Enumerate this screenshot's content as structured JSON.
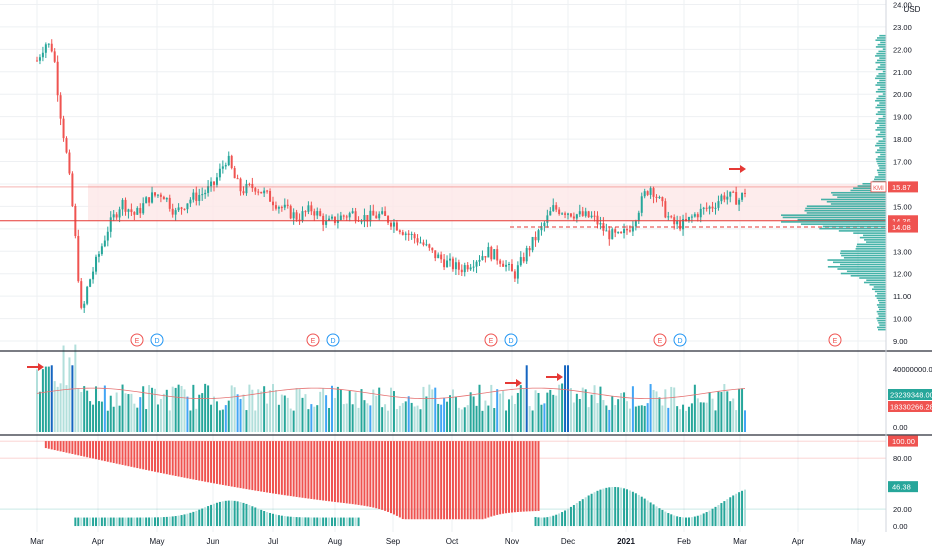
{
  "colors": {
    "up": "#26a69a",
    "down": "#ef5350",
    "up_light": "#b2dfdb",
    "vol_highlight": "#1565c0",
    "vol_mid": "#42a5f5",
    "zone": "#fde7e7",
    "price_line": "#e53935",
    "axis_text": "#131722",
    "grid": "#eef0f3",
    "event_e": "#ef5350",
    "event_d": "#2196f3",
    "arrow": "#e53935",
    "ma": "#e57373",
    "pane_border": "#2a2e39"
  },
  "currency_label": "USD",
  "price_axis": {
    "ticks": [
      "24.00",
      "23.00",
      "22.00",
      "21.00",
      "20.00",
      "19.00",
      "18.00",
      "17.00",
      "16.00",
      "15.00",
      "14.00",
      "13.00",
      "12.00",
      "11.00",
      "10.00",
      "9.00"
    ],
    "tick_values": [
      24,
      23,
      22,
      21,
      20,
      19,
      18,
      17,
      16,
      15,
      14,
      13,
      12,
      11,
      10,
      9
    ]
  },
  "price_labels": [
    {
      "text": "15.87",
      "color": "#ef5350",
      "value": 15.87,
      "tag": "KMI"
    },
    {
      "text": "14.36",
      "color": "#ef5350",
      "value": 14.36,
      "tag": ""
    },
    {
      "text": "14.08",
      "color": "#ef5350",
      "value": 14.08,
      "tag": ""
    }
  ],
  "volume_axis": {
    "ticks": [
      "40000000.00",
      "0.00"
    ],
    "tick_values": [
      40000000,
      0
    ]
  },
  "volume_labels": [
    {
      "text": "23239348.00",
      "color": "#26a69a"
    },
    {
      "text": "18330266.28",
      "color": "#ef5350"
    }
  ],
  "osc_axis": {
    "ticks": [
      "100.00",
      "80.00",
      "20.00",
      "0.00"
    ],
    "tick_values": [
      100,
      80,
      20,
      0
    ]
  },
  "osc_labels": [
    {
      "text": "100.00",
      "color": "#ef5350",
      "value": 100
    },
    {
      "text": "46.38",
      "color": "#26a69a",
      "value": 46.38
    }
  ],
  "time_axis": [
    "Mar",
    "Apr",
    "May",
    "Jun",
    "Jul",
    "Aug",
    "Sep",
    "Oct",
    "Nov",
    "Dec",
    "2021",
    "Feb",
    "Mar",
    "Apr",
    "May"
  ],
  "event_markers": [
    {
      "label": "E",
      "month": "May",
      "kind": "E"
    },
    {
      "label": "D",
      "month": "May",
      "kind": "D"
    },
    {
      "label": "E",
      "month": "Jul",
      "kind": "E"
    },
    {
      "label": "D",
      "month": "Aug",
      "kind": "D"
    },
    {
      "label": "E",
      "month": "Oct",
      "kind": "E"
    },
    {
      "label": "D",
      "month": "Nov",
      "kind": "D"
    },
    {
      "label": "E",
      "month": "Jan",
      "kind": "E"
    },
    {
      "label": "D",
      "month": "Feb",
      "kind": "D"
    },
    {
      "label": "E",
      "month": "Apr",
      "kind": "E"
    }
  ],
  "chart_data": {
    "type": "candlestick",
    "title": "",
    "y_range": [
      9,
      24.2
    ],
    "zone": {
      "low": 14.36,
      "high": 16.0
    },
    "horizontal_levels": [
      15.87,
      14.36,
      14.08
    ],
    "price_path": [
      [
        "Mar-01",
        21.5
      ],
      [
        "Mar-05",
        22.3
      ],
      [
        "Mar-09",
        22.0
      ],
      [
        "Mar-12",
        19.5
      ],
      [
        "Mar-16",
        17.0
      ],
      [
        "Mar-19",
        14.5
      ],
      [
        "Mar-23",
        10.0
      ],
      [
        "Mar-26",
        11.5
      ],
      [
        "Mar-30",
        12.5
      ],
      [
        "Apr-06",
        14.0
      ],
      [
        "Apr-13",
        15.2
      ],
      [
        "Apr-20",
        14.6
      ],
      [
        "Apr-27",
        15.4
      ],
      [
        "May-04",
        15.6
      ],
      [
        "May-11",
        14.7
      ],
      [
        "May-18",
        15.3
      ],
      [
        "May-26",
        15.6
      ],
      [
        "Jun-01",
        15.9
      ],
      [
        "Jun-08",
        17.2
      ],
      [
        "Jun-12",
        16.2
      ],
      [
        "Jun-15",
        15.7
      ],
      [
        "Jun-22",
        15.9
      ],
      [
        "Jun-29",
        15.4
      ],
      [
        "Jul-06",
        14.9
      ],
      [
        "Jul-13",
        14.5
      ],
      [
        "Jul-20",
        14.9
      ],
      [
        "Jul-27",
        14.2
      ],
      [
        "Aug-03",
        14.5
      ],
      [
        "Aug-10",
        14.7
      ],
      [
        "Aug-17",
        14.5
      ],
      [
        "Aug-24",
        14.6
      ],
      [
        "Aug-31",
        14.3
      ],
      [
        "Sep-08",
        13.8
      ],
      [
        "Sep-14",
        13.5
      ],
      [
        "Sep-21",
        12.9
      ],
      [
        "Sep-28",
        12.5
      ],
      [
        "Oct-05",
        12.2
      ],
      [
        "Oct-12",
        12.6
      ],
      [
        "Oct-19",
        13.0
      ],
      [
        "Oct-26",
        12.6
      ],
      [
        "Nov-02",
        11.9
      ],
      [
        "Nov-09",
        13.0
      ],
      [
        "Nov-16",
        13.9
      ],
      [
        "Nov-23",
        14.9
      ],
      [
        "Nov-30",
        14.8
      ],
      [
        "Dec-07",
        14.6
      ],
      [
        "Dec-14",
        14.5
      ],
      [
        "Dec-21",
        13.8
      ],
      [
        "Dec-28",
        13.6
      ],
      [
        "Jan-04",
        14.2
      ],
      [
        "Jan-11",
        15.6
      ],
      [
        "Jan-14",
        15.9
      ],
      [
        "Jan-19",
        15.1
      ],
      [
        "Jan-25",
        14.2
      ],
      [
        "Feb-01",
        14.2
      ],
      [
        "Feb-08",
        14.7
      ],
      [
        "Feb-16",
        15.0
      ],
      [
        "Feb-22",
        15.5
      ],
      [
        "Mar-01",
        15.3
      ],
      [
        "Mar-05",
        15.9
      ]
    ],
    "volume_profile_price_range": [
      9.5,
      22.7
    ],
    "volume_series": {
      "y_range": [
        0,
        45000000
      ]
    },
    "oscillator": {
      "y_range": [
        0,
        100
      ],
      "levels": [
        80,
        20
      ]
    }
  }
}
